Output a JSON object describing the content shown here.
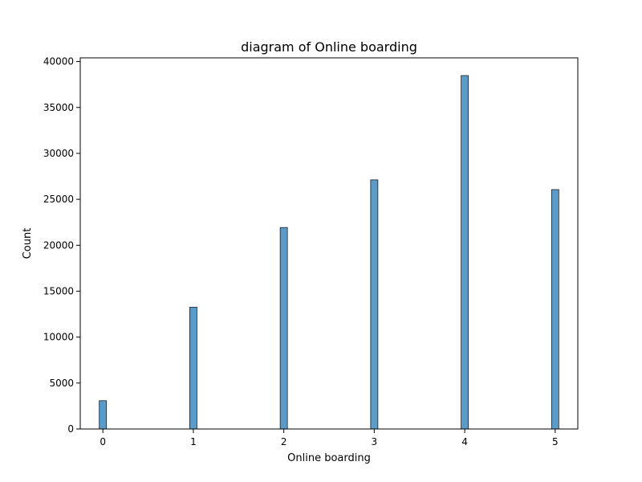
{
  "chart_data": {
    "type": "bar",
    "title": "diagram of Online boarding",
    "xlabel": "Online boarding",
    "ylabel": "Count",
    "categories": [
      0,
      1,
      2,
      3,
      4,
      5
    ],
    "values": [
      3080,
      13260,
      21930,
      27120,
      38470,
      26060
    ],
    "xlim": [
      -0.25,
      5.25
    ],
    "ylim": [
      0,
      40400
    ],
    "xticks": [
      0,
      1,
      2,
      3,
      4,
      5
    ],
    "xtick_labels": [
      "0",
      "1",
      "2",
      "3",
      "4",
      "5"
    ],
    "yticks": [
      0,
      5000,
      10000,
      15000,
      20000,
      25000,
      30000,
      35000,
      40000
    ],
    "ytick_labels": [
      "0",
      "5000",
      "10000",
      "15000",
      "20000",
      "25000",
      "30000",
      "35000",
      "40000"
    ],
    "bar_color": "#5a9bc9",
    "bar_edge_color": "#1f1f1f",
    "grid": false,
    "legend": false
  }
}
